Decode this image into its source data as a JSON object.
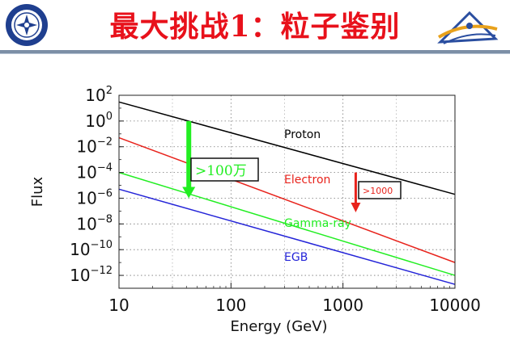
{
  "header": {
    "title": "最大挑战1：粒子鉴别",
    "left_logo_icon": "university-seal-icon",
    "right_logo_icon": "institute-logo-icon"
  },
  "chart_data": {
    "type": "line",
    "xscale": "log",
    "yscale": "log",
    "xlabel": "Energy (GeV)",
    "ylabel": "Flux",
    "xlim": [
      10,
      10000
    ],
    "ylim": [
      1e-13,
      100
    ],
    "x_ticks": [
      {
        "value": 10,
        "label": "10"
      },
      {
        "value": 100,
        "label": "100"
      },
      {
        "value": 1000,
        "label": "1000"
      },
      {
        "value": 10000,
        "label": "10000"
      }
    ],
    "y_ticks": [
      {
        "value": 100,
        "base": "10",
        "exp": "2"
      },
      {
        "value": 1,
        "base": "10",
        "exp": "0"
      },
      {
        "value": 0.01,
        "base": "10",
        "exp": "−2"
      },
      {
        "value": 0.0001,
        "base": "10",
        "exp": "−4"
      },
      {
        "value": 1e-06,
        "base": "10",
        "exp": "−6"
      },
      {
        "value": 1e-08,
        "base": "10",
        "exp": "−8"
      },
      {
        "value": 1e-10,
        "base": "10",
        "exp": "−10"
      },
      {
        "value": 1e-12,
        "base": "10",
        "exp": "−12"
      }
    ],
    "grid": true,
    "series": [
      {
        "name": "Proton",
        "color": "#000000",
        "x": [
          10,
          10000
        ],
        "y": [
          30,
          2e-06
        ]
      },
      {
        "name": "Electron",
        "color": "#e8231c",
        "x": [
          10,
          10000
        ],
        "y": [
          0.05,
          1e-11
        ]
      },
      {
        "name": "Gamma-ray",
        "color": "#22ee22",
        "x": [
          10,
          10000
        ],
        "y": [
          0.0001,
          1e-12
        ]
      },
      {
        "name": "EGB",
        "color": "#2424d8",
        "x": [
          10,
          10000
        ],
        "y": [
          5e-06,
          2e-13
        ]
      }
    ],
    "annotations": [
      {
        "text": ">100万",
        "x": 42,
        "from_y": 1,
        "to_y": 1e-06,
        "color": "#22ee22"
      },
      {
        "text": ">1000",
        "x": 1300,
        "from_y": 0.0001,
        "to_y": 8e-08,
        "color": "#e8231c"
      }
    ]
  }
}
